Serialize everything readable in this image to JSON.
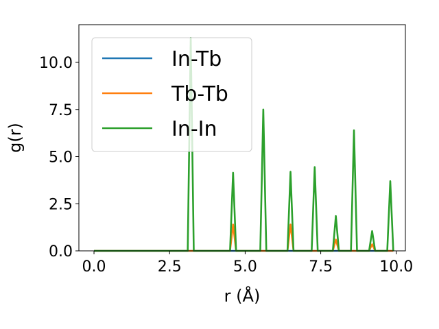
{
  "chart_data": {
    "type": "line",
    "xlabel": "r (Å)",
    "ylabel": "g(r)",
    "xlim": [
      -0.5,
      10.3
    ],
    "ylim": [
      0,
      12.0
    ],
    "xticks": [
      0.0,
      2.5,
      5.0,
      7.5,
      10.0
    ],
    "xtick_labels": [
      "0.0",
      "2.5",
      "5.0",
      "7.5",
      "10.0"
    ],
    "yticks": [
      0.0,
      2.5,
      5.0,
      7.5,
      10.0
    ],
    "ytick_labels": [
      "0.0",
      "2.5",
      "5.0",
      "7.5",
      "10.0"
    ],
    "grid": false,
    "legend_position": "upper-left",
    "series": [
      {
        "name": "In-Tb",
        "color": "#1f77b4",
        "x": [
          0.0,
          3.1,
          3.2,
          3.3,
          4.5,
          4.6,
          4.7,
          5.5,
          5.6,
          5.7,
          6.4,
          6.5,
          6.6,
          7.2,
          7.3,
          7.4,
          7.9,
          8.0,
          8.1,
          8.5,
          8.6,
          8.7,
          9.1,
          9.2,
          9.3,
          9.7,
          9.8,
          9.9
        ],
        "y": [
          0.0,
          0.0,
          0.0,
          0.0,
          0.0,
          0.0,
          0.0,
          0.0,
          0.0,
          0.0,
          0.0,
          0.0,
          0.0,
          0.0,
          0.0,
          0.0,
          0.0,
          0.0,
          0.0,
          0.0,
          0.0,
          0.0,
          0.0,
          0.0,
          0.0,
          0.0,
          0.0,
          0.0
        ]
      },
      {
        "name": "Tb-Tb",
        "color": "#ff7f0e",
        "x": [
          0.0,
          3.1,
          3.2,
          3.3,
          4.5,
          4.6,
          4.7,
          5.5,
          5.6,
          5.7,
          6.4,
          6.5,
          6.6,
          7.2,
          7.3,
          7.4,
          7.9,
          8.0,
          8.1,
          8.5,
          8.6,
          8.7,
          9.1,
          9.2,
          9.3,
          9.7,
          9.8,
          9.9
        ],
        "y": [
          0.0,
          0.0,
          0.0,
          0.0,
          0.0,
          1.4,
          0.0,
          0.0,
          0.0,
          0.0,
          0.0,
          1.4,
          0.0,
          0.0,
          0.0,
          0.0,
          0.0,
          0.6,
          0.0,
          0.0,
          0.0,
          0.0,
          0.0,
          0.35,
          0.0,
          0.0,
          0.0,
          0.0
        ]
      },
      {
        "name": "In-In",
        "color": "#2ca02c",
        "x": [
          0.0,
          3.1,
          3.2,
          3.3,
          4.5,
          4.6,
          4.7,
          5.5,
          5.6,
          5.7,
          6.4,
          6.5,
          6.6,
          7.2,
          7.3,
          7.4,
          7.9,
          8.0,
          8.1,
          8.5,
          8.6,
          8.7,
          9.1,
          9.2,
          9.3,
          9.7,
          9.8,
          9.9
        ],
        "y": [
          0.0,
          0.0,
          11.3,
          0.0,
          0.0,
          4.15,
          0.0,
          0.0,
          7.5,
          0.0,
          0.0,
          4.2,
          0.0,
          0.0,
          4.45,
          0.0,
          0.0,
          1.85,
          0.0,
          0.0,
          6.4,
          0.0,
          0.0,
          1.05,
          0.0,
          0.0,
          3.7,
          0.0
        ]
      }
    ]
  }
}
